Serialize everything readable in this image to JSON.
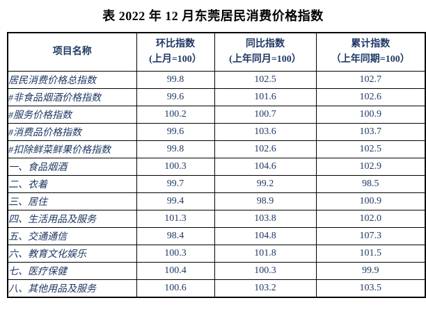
{
  "title": "表 2022 年 12 月东莞居民消费价格指数",
  "colors": {
    "background": "#ffffff",
    "title_text": "#000000",
    "table_text": "#1f3864",
    "border": "#000000"
  },
  "table": {
    "columns": [
      {
        "label": "项目名称",
        "sub": ""
      },
      {
        "label": "环比指数",
        "sub": "(上月=100）"
      },
      {
        "label": "同比指数",
        "sub": "(上年同月=100）"
      },
      {
        "label": "累计指数",
        "sub": "（上年同期=100）"
      }
    ],
    "rows": [
      {
        "name": "居民消费价格总指数",
        "mom": "99.8",
        "yoy": "102.5",
        "cum": "102.7"
      },
      {
        "name": "#非食品烟酒价格指数",
        "mom": "99.6",
        "yoy": "101.6",
        "cum": "102.6"
      },
      {
        "name": "#服务价格指数",
        "mom": "100.2",
        "yoy": "100.7",
        "cum": "100.9"
      },
      {
        "name": "#消费品价格指数",
        "mom": "99.6",
        "yoy": "103.6",
        "cum": "103.7"
      },
      {
        "name": "#扣除鲜菜鲜果价格指数",
        "mom": "99.8",
        "yoy": "102.6",
        "cum": "102.5"
      },
      {
        "name": "一、食品烟酒",
        "mom": "100.3",
        "yoy": "104.6",
        "cum": "102.9"
      },
      {
        "name": "二、衣着",
        "mom": "99.7",
        "yoy": "99.2",
        "cum": "98.5"
      },
      {
        "name": "三、居住",
        "mom": "99.4",
        "yoy": "98.9",
        "cum": "100.9"
      },
      {
        "name": "四、生活用品及服务",
        "mom": "101.3",
        "yoy": "103.8",
        "cum": "102.0"
      },
      {
        "name": "五、交通通信",
        "mom": "98.4",
        "yoy": "104.8",
        "cum": "107.3"
      },
      {
        "name": "六、教育文化娱乐",
        "mom": "100.3",
        "yoy": "101.8",
        "cum": "101.5"
      },
      {
        "name": "七、医疗保健",
        "mom": "100.4",
        "yoy": "100.3",
        "cum": "99.9"
      },
      {
        "name": "八、其他用品及服务",
        "mom": "100.6",
        "yoy": "103.2",
        "cum": "103.5"
      }
    ]
  },
  "chart_data": {
    "type": "table",
    "title": "表 2022 年 12 月东莞居民消费价格指数",
    "columns": [
      "项目名称",
      "环比指数(上月=100）",
      "同比指数(上年同月=100）",
      "累计指数（上年同期=100）"
    ],
    "rows": [
      [
        "居民消费价格总指数",
        99.8,
        102.5,
        102.7
      ],
      [
        "#非食品烟酒价格指数",
        99.6,
        101.6,
        102.6
      ],
      [
        "#服务价格指数",
        100.2,
        100.7,
        100.9
      ],
      [
        "#消费品价格指数",
        99.6,
        103.6,
        103.7
      ],
      [
        "#扣除鲜菜鲜果价格指数",
        99.8,
        102.6,
        102.5
      ],
      [
        "一、食品烟酒",
        100.3,
        104.6,
        102.9
      ],
      [
        "二、衣着",
        99.7,
        99.2,
        98.5
      ],
      [
        "三、居住",
        99.4,
        98.9,
        100.9
      ],
      [
        "四、生活用品及服务",
        101.3,
        103.8,
        102.0
      ],
      [
        "五、交通通信",
        98.4,
        104.8,
        107.3
      ],
      [
        "六、教育文化娱乐",
        100.3,
        101.8,
        101.5
      ],
      [
        "七、医疗保健",
        100.4,
        100.3,
        99.9
      ],
      [
        "八、其他用品及服务",
        100.6,
        103.2,
        103.5
      ]
    ]
  }
}
